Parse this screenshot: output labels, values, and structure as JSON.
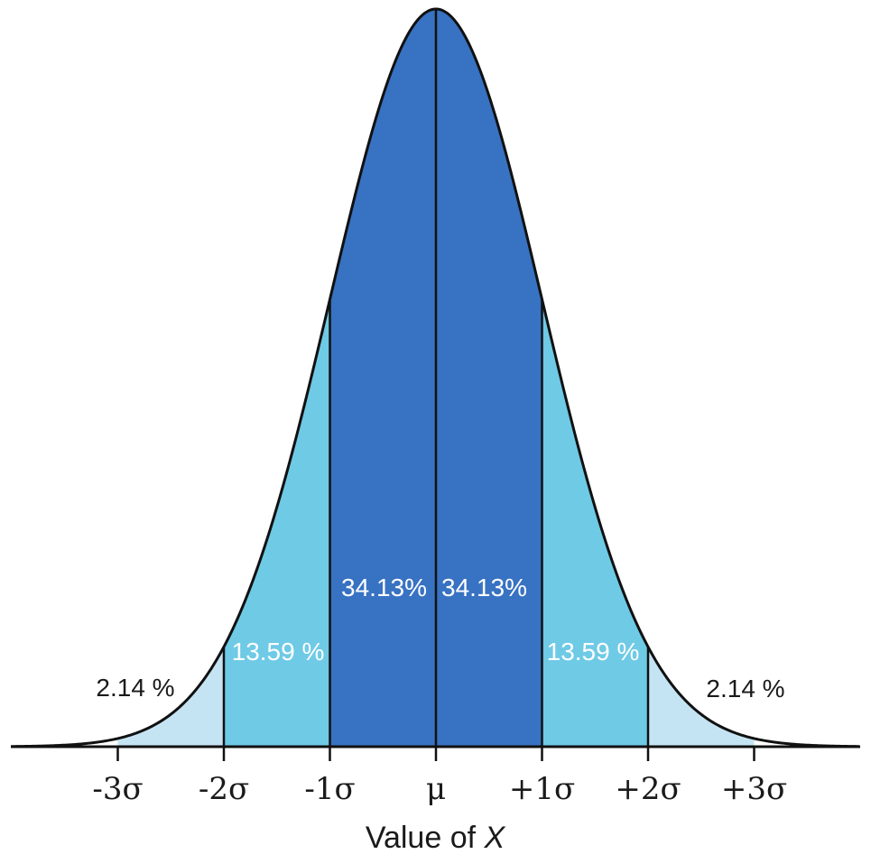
{
  "chart_data": {
    "type": "area",
    "distribution": "normal",
    "xlabel_prefix": "Value of ",
    "xlabel_var": "X",
    "x_range_sigma": [
      -3.8,
      4.0
    ],
    "tick_positions_sigma": [
      -3,
      -2,
      -1,
      0,
      1,
      2,
      3
    ],
    "tick_labels": [
      "-3σ",
      "-2σ",
      "-1σ",
      "μ",
      "+1σ",
      "+2σ",
      "+3σ"
    ],
    "bands": [
      {
        "from": -3,
        "to": -2,
        "percent_label": "2.14 %",
        "color": "#c5e4f3",
        "label_color": "#1a1a1a"
      },
      {
        "from": -2,
        "to": -1,
        "percent_label": "13.59 %",
        "color": "#6fcae6",
        "label_color": "#ffffff"
      },
      {
        "from": -1,
        "to": 0,
        "percent_label": "34.13%",
        "color": "#3872c2",
        "label_color": "#ffffff"
      },
      {
        "from": 0,
        "to": 1,
        "percent_label": "34.13%",
        "color": "#3872c2",
        "label_color": "#ffffff"
      },
      {
        "from": 1,
        "to": 2,
        "percent_label": "13.59 %",
        "color": "#6fcae6",
        "label_color": "#ffffff"
      },
      {
        "from": 2,
        "to": 3,
        "percent_label": "2.14 %",
        "color": "#c5e4f3",
        "label_color": "#1a1a1a"
      }
    ],
    "dividers_sigma": [
      -2,
      -1,
      0,
      1,
      2
    ],
    "outline_color": "#111111"
  }
}
